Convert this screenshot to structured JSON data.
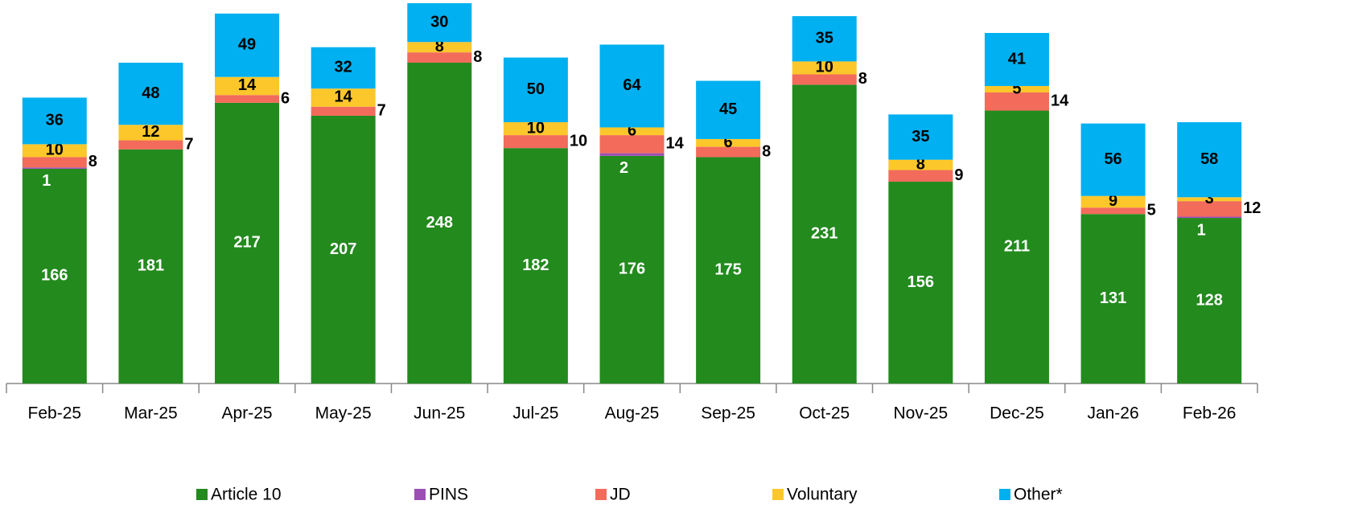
{
  "chart_data": {
    "type": "stacked_bar",
    "categories": [
      "Feb-25",
      "Mar-25",
      "Apr-25",
      "May-25",
      "Jun-25",
      "Jul-25",
      "Aug-25",
      "Sep-25",
      "Oct-25",
      "Nov-25",
      "Dec-25",
      "Jan-26",
      "Feb-26"
    ],
    "series": [
      {
        "name": "Article 10",
        "color": "#238a1e",
        "values": [
          166,
          181,
          217,
          207,
          248,
          182,
          176,
          175,
          231,
          156,
          211,
          131,
          128
        ]
      },
      {
        "name": "PINS",
        "color": "#9b4fb5",
        "values": [
          1,
          null,
          null,
          null,
          null,
          null,
          2,
          null,
          null,
          null,
          null,
          null,
          1
        ]
      },
      {
        "name": "JD",
        "color": "#f26b5b",
        "values": [
          8,
          7,
          6,
          7,
          8,
          10,
          14,
          8,
          8,
          9,
          14,
          5,
          12
        ]
      },
      {
        "name": "Voluntary",
        "color": "#fcc72b",
        "values": [
          10,
          12,
          14,
          14,
          8,
          10,
          6,
          6,
          10,
          8,
          5,
          9,
          3
        ]
      },
      {
        "name": "Other*",
        "color": "#00b0f0",
        "values": [
          36,
          48,
          49,
          32,
          30,
          50,
          64,
          45,
          35,
          35,
          41,
          56,
          58
        ]
      }
    ]
  }
}
